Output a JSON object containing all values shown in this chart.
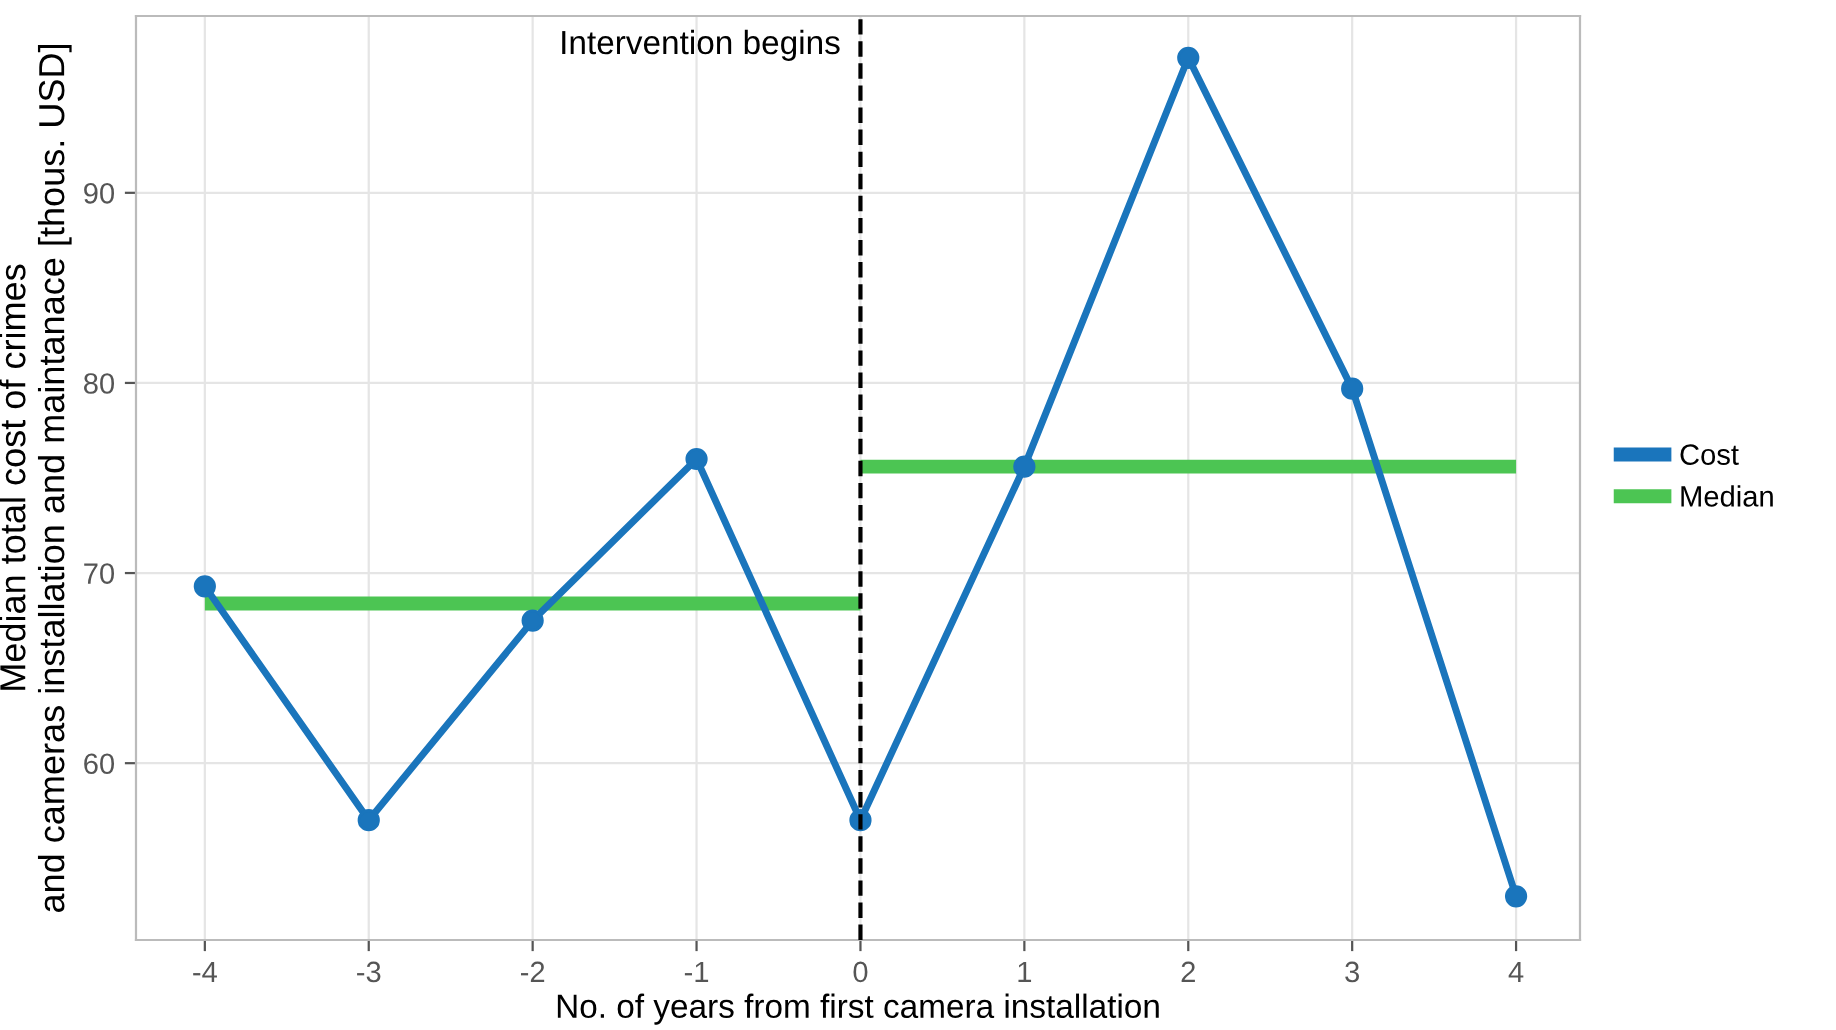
{
  "chart_data": {
    "type": "line",
    "xlabel": "No. of years from first camera installation",
    "ylabel": "Median total cost of crimes\nand cameras installation and maintanace [thous. USD]",
    "x": [
      -4,
      -3,
      -2,
      -1,
      0,
      1,
      2,
      3,
      4
    ],
    "series": [
      {
        "name": "Cost",
        "color": "#1a75bc",
        "marker": "circle",
        "values": [
          69.3,
          57.0,
          67.5,
          76.0,
          57.0,
          75.6,
          97.1,
          79.7,
          53.0
        ]
      },
      {
        "name": "Median",
        "color": "#4cc553",
        "marker": "none",
        "x": [
          -4,
          0
        ],
        "values": [
          68.4,
          68.4
        ]
      },
      {
        "color": "#4cc553",
        "marker": "none",
        "x": [
          0,
          4
        ],
        "values": [
          75.6,
          75.6
        ]
      }
    ],
    "ref_lines": [
      {
        "axis": "x",
        "value": 0,
        "label": "Intervention begins",
        "color": "#000000",
        "line_style": "dashed"
      }
    ],
    "xlim": [
      -4.42,
      4.39
    ],
    "xticks": [
      -4,
      -3,
      -2,
      -1,
      0,
      1,
      2,
      3,
      4
    ],
    "ylim": [
      50.7,
      99.3
    ],
    "yticks": [
      60,
      70,
      80,
      90
    ],
    "grid": true,
    "legend": "right"
  }
}
